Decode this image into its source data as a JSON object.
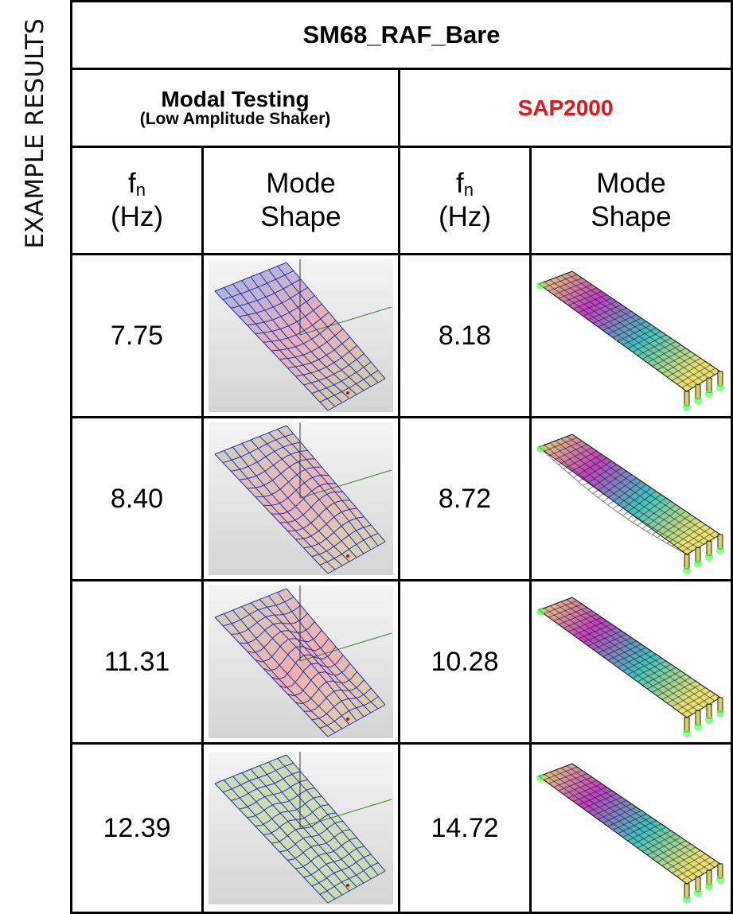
{
  "side_label": "EXAMPLE RESULTS",
  "header": {
    "title": "SM68_RAF_Bare"
  },
  "groups": [
    {
      "title": "Modal Testing",
      "subtitle": "(Low Amplitude Shaker)"
    },
    {
      "title": "SAP2000"
    }
  ],
  "columns": [
    {
      "symbol": "f",
      "subscript": "n",
      "unit": "(Hz)"
    },
    {
      "line1": "Mode",
      "line2": "Shape"
    },
    {
      "symbol": "f",
      "subscript": "n",
      "unit": "(Hz)"
    },
    {
      "line1": "Mode",
      "line2": "Shape"
    }
  ],
  "rows": [
    [
      "7.75",
      "8.18"
    ],
    [
      "8.40",
      "8.72"
    ],
    [
      "11.31",
      "10.28"
    ],
    [
      "12.39",
      "14.72"
    ]
  ]
}
